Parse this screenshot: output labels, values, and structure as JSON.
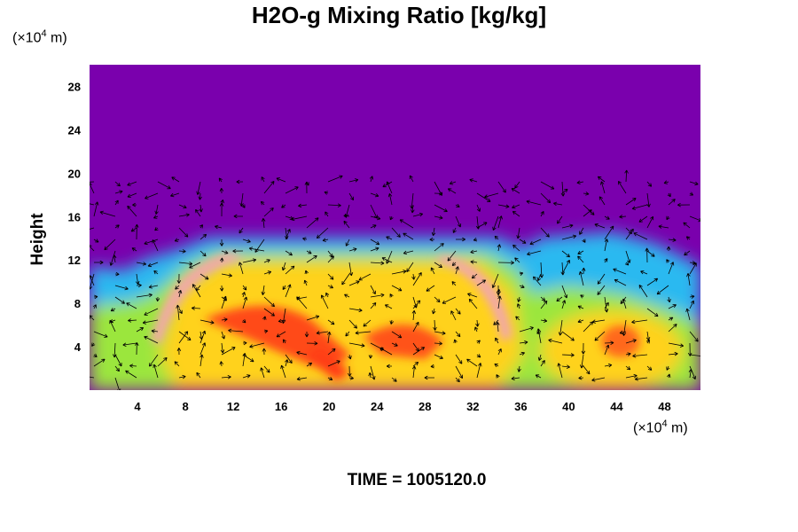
{
  "chart_data": {
    "type": "heatmap",
    "title": "H2O-g Mixing Ratio [kg/kg]",
    "ylabel": "Height",
    "x_unit": {
      "prefix": "(×10",
      "exp": "4",
      "suffix": " m)"
    },
    "y_unit": {
      "prefix": "(×10",
      "exp": "4",
      "suffix": " m)"
    },
    "x_ticks": [
      4,
      8,
      12,
      16,
      20,
      24,
      28,
      32,
      36,
      40,
      44,
      48
    ],
    "y_ticks": [
      4,
      8,
      12,
      16,
      20,
      24,
      28
    ],
    "xlim": [
      0,
      51
    ],
    "ylim": [
      0,
      30
    ],
    "footer": "TIME = 1005120.0",
    "overlay": "wind-vector-arrows",
    "colors": {
      "background_dry": "#7a00ad",
      "moist_low": "#2ab9f0",
      "moist_mid": "#9be63c",
      "moist_high": "#ffd21e",
      "peak": "#ff3c19",
      "extreme": "#f2a8a8",
      "arrow": "#000000"
    }
  }
}
